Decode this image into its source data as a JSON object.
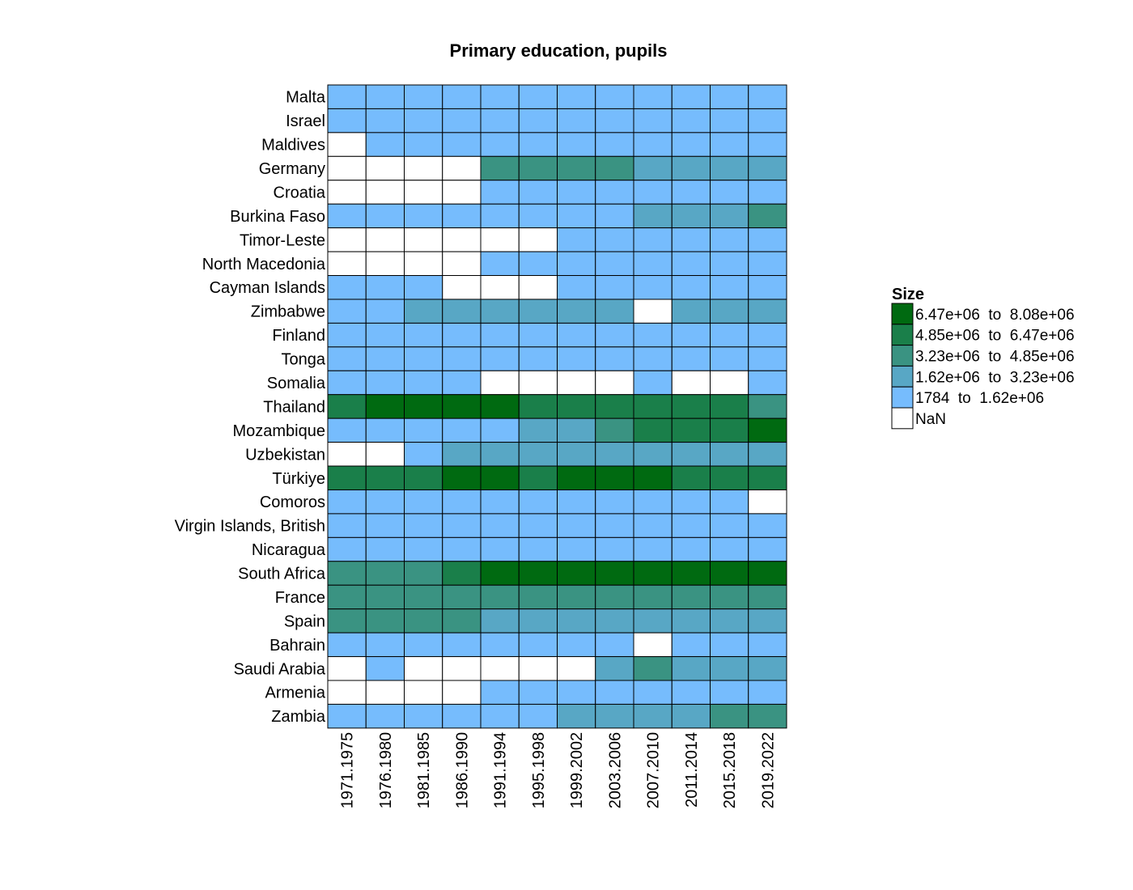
{
  "chart_data": {
    "type": "heatmap",
    "title": "Primary education, pupils",
    "rows": [
      "Malta",
      "Israel",
      "Maldives",
      "Germany",
      "Croatia",
      "Burkina Faso",
      "Timor-Leste",
      "North Macedonia",
      "Cayman Islands",
      "Zimbabwe",
      "Finland",
      "Tonga",
      "Somalia",
      "Thailand",
      "Mozambique",
      "Uzbekistan",
      "Türkiye",
      "Comoros",
      "Virgin Islands, British",
      "Nicaragua",
      "South Africa",
      "France",
      "Spain",
      "Bahrain",
      "Saudi Arabia",
      "Armenia",
      "Zambia"
    ],
    "columns": [
      "1971.1975",
      "1976.1980",
      "1981.1985",
      "1986.1990",
      "1991.1994",
      "1995.1998",
      "1999.2002",
      "2003.2006",
      "2007.2010",
      "2011.2014",
      "2015.2018",
      "2019.2022"
    ],
    "bin_values": [
      [
        1,
        1,
        1,
        1,
        1,
        1,
        1,
        1,
        1,
        1,
        1,
        1
      ],
      [
        1,
        1,
        1,
        1,
        1,
        1,
        1,
        1,
        1,
        1,
        1,
        1
      ],
      [
        0,
        1,
        1,
        1,
        1,
        1,
        1,
        1,
        1,
        1,
        1,
        1
      ],
      [
        0,
        0,
        0,
        0,
        3,
        3,
        3,
        3,
        2,
        2,
        2,
        2
      ],
      [
        0,
        0,
        0,
        0,
        1,
        1,
        1,
        1,
        1,
        1,
        1,
        1
      ],
      [
        1,
        1,
        1,
        1,
        1,
        1,
        1,
        1,
        2,
        2,
        2,
        3
      ],
      [
        0,
        0,
        0,
        0,
        0,
        0,
        1,
        1,
        1,
        1,
        1,
        1
      ],
      [
        0,
        0,
        0,
        0,
        1,
        1,
        1,
        1,
        1,
        1,
        1,
        1
      ],
      [
        1,
        1,
        1,
        0,
        0,
        0,
        1,
        1,
        1,
        1,
        1,
        1
      ],
      [
        1,
        1,
        2,
        2,
        2,
        2,
        2,
        2,
        0,
        2,
        2,
        2
      ],
      [
        1,
        1,
        1,
        1,
        1,
        1,
        1,
        1,
        1,
        1,
        1,
        1
      ],
      [
        1,
        1,
        1,
        1,
        1,
        1,
        1,
        1,
        1,
        1,
        1,
        1
      ],
      [
        1,
        1,
        1,
        1,
        0,
        0,
        0,
        0,
        1,
        0,
        0,
        1
      ],
      [
        4,
        5,
        5,
        5,
        5,
        4,
        4,
        4,
        4,
        4,
        4,
        3
      ],
      [
        1,
        1,
        1,
        1,
        1,
        2,
        2,
        3,
        4,
        4,
        4,
        5
      ],
      [
        0,
        0,
        1,
        2,
        2,
        2,
        2,
        2,
        2,
        2,
        2,
        2
      ],
      [
        4,
        4,
        4,
        5,
        5,
        4,
        5,
        5,
        5,
        4,
        4,
        4
      ],
      [
        1,
        1,
        1,
        1,
        1,
        1,
        1,
        1,
        1,
        1,
        1,
        0
      ],
      [
        1,
        1,
        1,
        1,
        1,
        1,
        1,
        1,
        1,
        1,
        1,
        1
      ],
      [
        1,
        1,
        1,
        1,
        1,
        1,
        1,
        1,
        1,
        1,
        1,
        1
      ],
      [
        3,
        3,
        3,
        4,
        5,
        5,
        5,
        5,
        5,
        5,
        5,
        5
      ],
      [
        3,
        3,
        3,
        3,
        3,
        3,
        3,
        3,
        3,
        3,
        3,
        3
      ],
      [
        3,
        3,
        3,
        3,
        2,
        2,
        2,
        2,
        2,
        2,
        2,
        2
      ],
      [
        1,
        1,
        1,
        1,
        1,
        1,
        1,
        1,
        0,
        1,
        1,
        1
      ],
      [
        0,
        1,
        0,
        0,
        0,
        0,
        0,
        2,
        3,
        2,
        2,
        2
      ],
      [
        0,
        0,
        0,
        0,
        1,
        1,
        1,
        1,
        1,
        1,
        1,
        1
      ],
      [
        1,
        1,
        1,
        1,
        1,
        1,
        2,
        2,
        2,
        2,
        3,
        3
      ]
    ],
    "legend": {
      "title": "Size",
      "placement": "right",
      "items": [
        {
          "bin": 5,
          "label": "6.47e+06  to  8.08e+06",
          "color": "#006a11"
        },
        {
          "bin": 4,
          "label": "4.85e+06  to  6.47e+06",
          "color": "#1a7f4a"
        },
        {
          "bin": 3,
          "label": "3.23e+06  to  4.85e+06",
          "color": "#3a9382"
        },
        {
          "bin": 2,
          "label": "1.62e+06  to  3.23e+06",
          "color": "#58a7c5"
        },
        {
          "bin": 1,
          "label": "1784  to  1.62e+06",
          "color": "#76bcfd"
        },
        {
          "bin": 0,
          "label": "NaN",
          "color": "#ffffff"
        }
      ]
    }
  }
}
